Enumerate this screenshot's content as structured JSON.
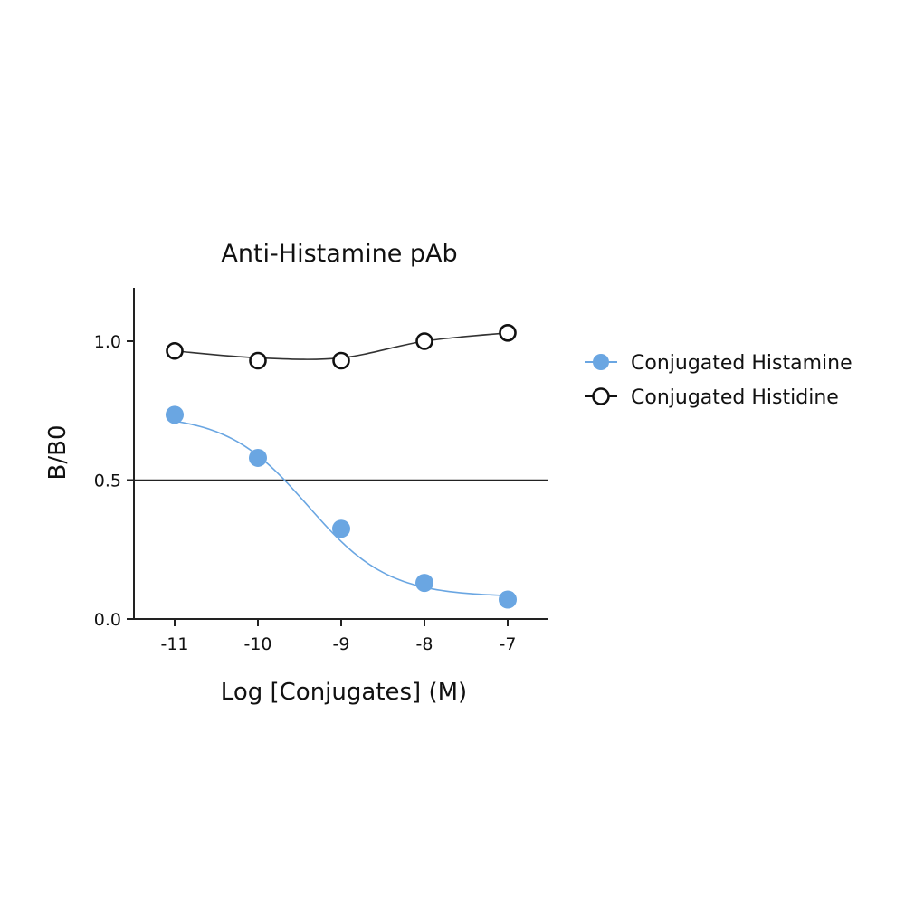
{
  "chart_data": {
    "type": "line",
    "title": "Anti-Histamine pAb",
    "xlabel": "Log [Conjugates] (M)",
    "ylabel": "B/B0",
    "xlim": [
      -11.5,
      -6.5
    ],
    "ylim": [
      0.0,
      1.2
    ],
    "x_ticks": [
      -11,
      -10,
      -9,
      -8,
      -7
    ],
    "x_tick_labels": [
      "-11",
      "-10",
      "-9",
      "-8",
      "-7"
    ],
    "y_ticks": [
      0.0,
      0.5,
      1.0
    ],
    "y_tick_labels": [
      "0.0",
      "0.5",
      "1.0"
    ],
    "reference_line_y": 0.5,
    "grid": false,
    "legend_position": "right",
    "x": [
      -11,
      -10,
      -9,
      -8,
      -7
    ],
    "series": [
      {
        "name": "Conjugated Histamine",
        "values": [
          0.735,
          0.58,
          0.325,
          0.13,
          0.07
        ],
        "marker": "filled-circle",
        "color": "#6aa6e2",
        "fit_curve": "sigmoid"
      },
      {
        "name": "Conjugated Histidine",
        "values": [
          0.965,
          0.93,
          0.93,
          1.0,
          1.03
        ],
        "marker": "open-circle",
        "color": "#111111",
        "fit_curve": "smooth"
      }
    ]
  }
}
